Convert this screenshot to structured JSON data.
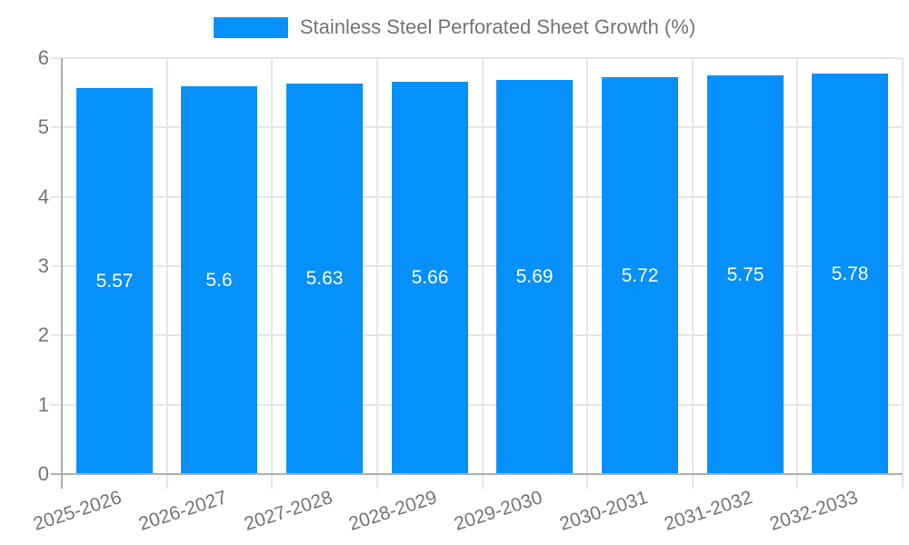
{
  "chart_data": {
    "type": "bar",
    "legend": "Stainless Steel Perforated Sheet Growth (%)",
    "legend_position": "top-center",
    "categories": [
      "2025-2026",
      "2026-2027",
      "2027-2028",
      "2028-2029",
      "2029-2030",
      "2030-2031",
      "2031-2032",
      "2032-2033"
    ],
    "values": [
      5.57,
      5.6,
      5.63,
      5.66,
      5.69,
      5.72,
      5.75,
      5.78
    ],
    "value_labels": [
      "5.57",
      "5.6",
      "5.63",
      "5.66",
      "5.69",
      "5.72",
      "5.75",
      "5.78"
    ],
    "title": "",
    "xlabel": "",
    "ylabel": "",
    "ylim": [
      0,
      6
    ],
    "yticks": [
      0,
      1,
      2,
      3,
      4,
      5,
      6
    ],
    "grid": true,
    "colors": {
      "bar": "#0690fa",
      "bar_label": "#ffffff",
      "axis_text": "#757575",
      "grid_line": "#e6e6e6",
      "axis_line": "#b0b0b0",
      "background": "#ffffff"
    }
  }
}
